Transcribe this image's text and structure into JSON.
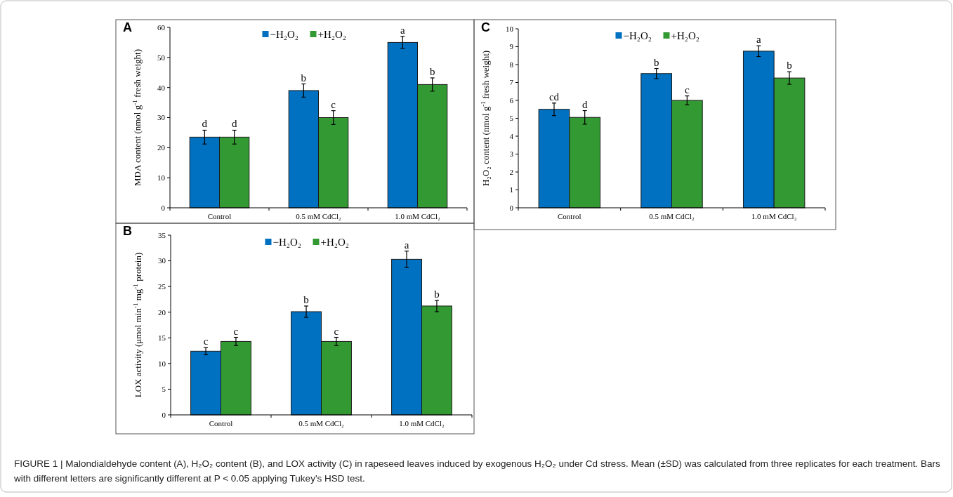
{
  "chart_data": [
    {
      "type": "bar",
      "title": "A",
      "ylabel": "MDA content (nmol g$^{-1}$ fresh weight)",
      "categories": [
        "Control",
        "0.5 mM CdCl₂",
        "1.0 mM CdCl₂"
      ],
      "ylim": [
        0,
        60
      ],
      "yticks": [
        0,
        10,
        20,
        30,
        40,
        50,
        60
      ],
      "legend": "top",
      "series": [
        {
          "name": "−H₂O₂",
          "color": "#0070c0",
          "values": [
            23.5,
            39,
            55
          ],
          "errors": [
            2.3,
            2.2,
            2
          ],
          "value_labels": [
            "d",
            "b",
            "a"
          ]
        },
        {
          "name": "+H₂O₂",
          "color": "#339933",
          "values": [
            23.5,
            30,
            41
          ],
          "errors": [
            2.3,
            2.3,
            2.2
          ],
          "value_labels": [
            "d",
            "c",
            "b"
          ]
        }
      ]
    },
    {
      "type": "bar",
      "title": "C",
      "ylabel": "H₂O₂ content (nmol g$^{-1}$ fresh weight)",
      "categories": [
        "Control",
        "0.5 mM CdCl₂",
        "1.0 mM CdCl₂"
      ],
      "ylim": [
        0,
        10
      ],
      "yticks": [
        0,
        1,
        2,
        3,
        4,
        5,
        6,
        7,
        8,
        9,
        10
      ],
      "legend": "top",
      "series": [
        {
          "name": "−H₂O₂",
          "color": "#0070c0",
          "values": [
            5.5,
            7.5,
            8.75
          ],
          "errors": [
            0.35,
            0.28,
            0.3
          ],
          "value_labels": [
            "cd",
            "b",
            "a"
          ]
        },
        {
          "name": "+H₂O₂",
          "color": "#339933",
          "values": [
            5.05,
            6.0,
            7.25
          ],
          "errors": [
            0.38,
            0.25,
            0.35
          ],
          "value_labels": [
            "d",
            "c",
            "b"
          ]
        }
      ]
    },
    {
      "type": "bar",
      "title": "B",
      "ylabel": "LOX activity (μmol min$^{-1}$ mg$^{-1}$ protein)",
      "categories": [
        "Control",
        "0.5 mM CdCl₂",
        "1.0 mM CdCl₂"
      ],
      "ylim": [
        0,
        35
      ],
      "yticks": [
        0,
        5,
        10,
        15,
        20,
        25,
        30,
        35
      ],
      "legend": "top",
      "series": [
        {
          "name": "−H₂O₂",
          "color": "#0070c0",
          "values": [
            12.4,
            20.1,
            30.3
          ],
          "errors": [
            0.7,
            1.1,
            1.6
          ],
          "value_labels": [
            "c",
            "b",
            "a"
          ]
        },
        {
          "name": "+H₂O₂",
          "color": "#339933",
          "values": [
            14.3,
            14.3,
            21.2
          ],
          "errors": [
            0.8,
            0.8,
            1.1
          ],
          "value_labels": [
            "c",
            "c",
            "b"
          ]
        }
      ],
      "annotations": [
        "FIGURE 1 | Malondialdehyde content (A), H₂O₂ content (B), and LOX activity (C) in rapeseed leaves induced by exogenous H₂O₂ under Cd stress. Mean (±SD) was calculated from three replicates for each treatment. Bars with different letters are significantly different at P < 0.05 applying Tukey's HSD test."
      ]
    }
  ]
}
